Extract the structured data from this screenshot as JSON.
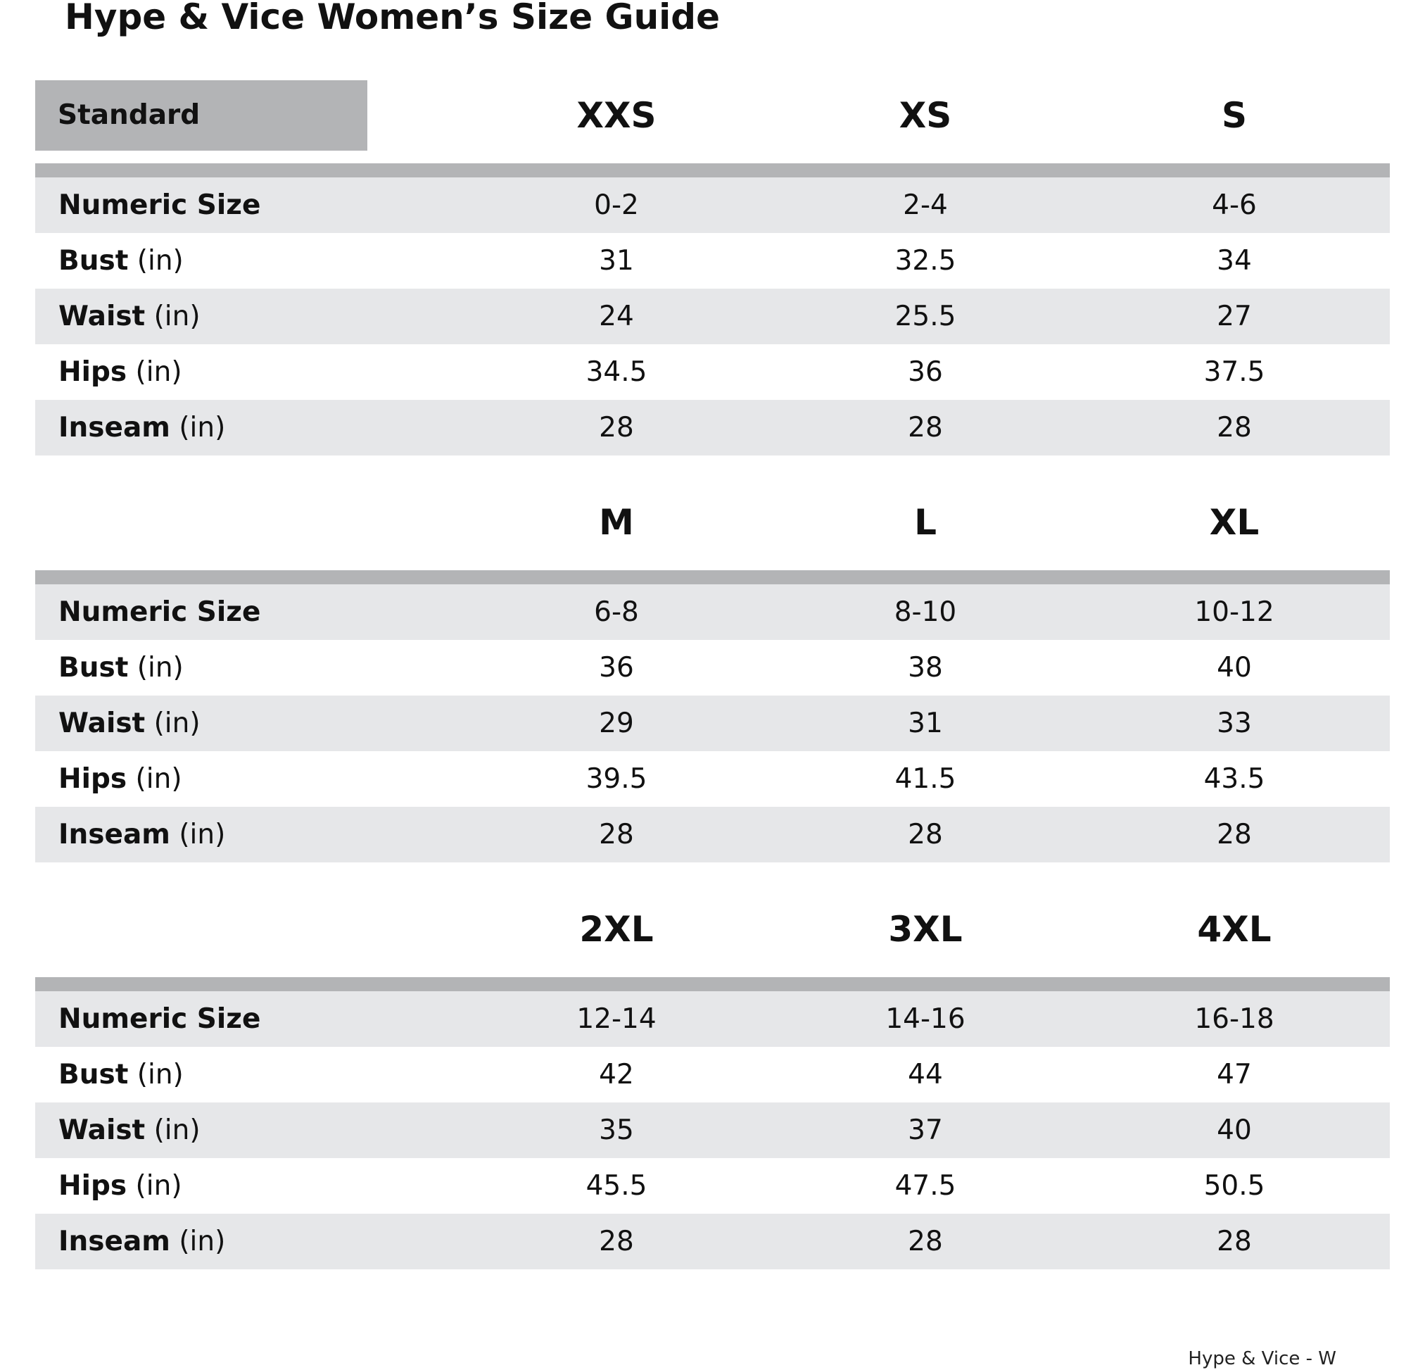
{
  "title": "Hype & Vice Women’s Size Guide",
  "standard_label": "Standard",
  "measurements": [
    {
      "name": "Numeric Size",
      "unit": ""
    },
    {
      "name": "Bust",
      "unit": "(in)"
    },
    {
      "name": "Waist",
      "unit": "(in)"
    },
    {
      "name": "Hips",
      "unit": "(in)"
    },
    {
      "name": "Inseam",
      "unit": "(in)"
    }
  ],
  "groups": [
    {
      "sizes": [
        "XXS",
        "XS",
        "S"
      ],
      "values": [
        [
          "0-2",
          "2-4",
          "4-6"
        ],
        [
          "31",
          "32.5",
          "34"
        ],
        [
          "24",
          "25.5",
          "27"
        ],
        [
          "34.5",
          "36",
          "37.5"
        ],
        [
          "28",
          "28",
          "28"
        ]
      ]
    },
    {
      "sizes": [
        "M",
        "L",
        "XL"
      ],
      "values": [
        [
          "6-8",
          "8-10",
          "10-12"
        ],
        [
          "36",
          "38",
          "40"
        ],
        [
          "29",
          "31",
          "33"
        ],
        [
          "39.5",
          "41.5",
          "43.5"
        ],
        [
          "28",
          "28",
          "28"
        ]
      ]
    },
    {
      "sizes": [
        "2XL",
        "3XL",
        "4XL"
      ],
      "values": [
        [
          "12-14",
          "14-16",
          "16-18"
        ],
        [
          "42",
          "44",
          "47"
        ],
        [
          "35",
          "37",
          "40"
        ],
        [
          "45.5",
          "47.5",
          "50.5"
        ],
        [
          "28",
          "28",
          "28"
        ]
      ]
    }
  ],
  "footer": "Hype & Vice - W",
  "colors": {
    "header_gray": "#b3b4b6",
    "row_shade": "#e6e7e9"
  }
}
